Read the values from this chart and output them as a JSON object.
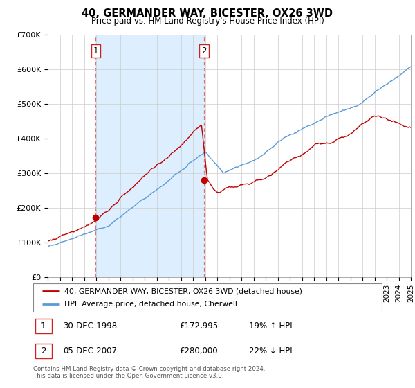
{
  "title": "40, GERMANDER WAY, BICESTER, OX26 3WD",
  "subtitle": "Price paid vs. HM Land Registry's House Price Index (HPI)",
  "legend_line1": "40, GERMANDER WAY, BICESTER, OX26 3WD (detached house)",
  "legend_line2": "HPI: Average price, detached house, Cherwell",
  "table_row1": [
    "1",
    "30-DEC-1998",
    "£172,995",
    "19% ↑ HPI"
  ],
  "table_row2": [
    "2",
    "05-DEC-2007",
    "£280,000",
    "22% ↓ HPI"
  ],
  "footnote": "Contains HM Land Registry data © Crown copyright and database right 2024.\nThis data is licensed under the Open Government Licence v3.0.",
  "hpi_color": "#5b9bd5",
  "price_color": "#c00000",
  "shade_color": "#ddeeff",
  "ylim": [
    0,
    700000
  ],
  "yticks": [
    0,
    100000,
    200000,
    300000,
    400000,
    500000,
    600000,
    700000
  ],
  "ytick_labels": [
    "£0",
    "£100K",
    "£200K",
    "£300K",
    "£400K",
    "£500K",
    "£600K",
    "£700K"
  ],
  "xstart": 1995,
  "xend": 2025,
  "sale1_year": 1998.96,
  "sale1_price": 172995,
  "sale2_year": 2007.92,
  "sale2_price": 280000,
  "background_color": "#ffffff",
  "grid_color": "#cccccc"
}
